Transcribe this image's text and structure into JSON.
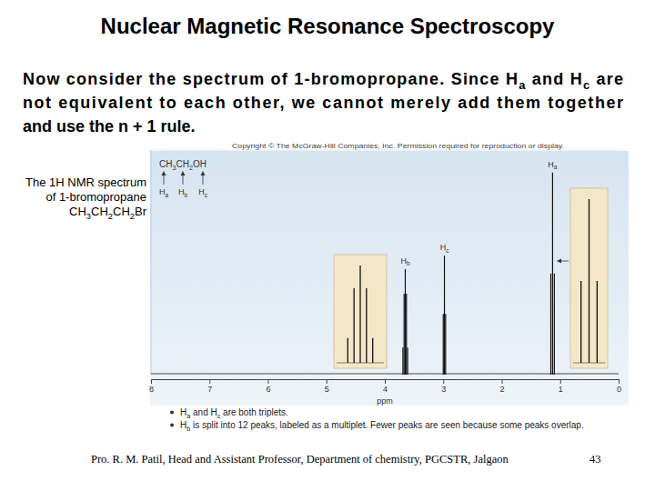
{
  "slide": {
    "title": "Nuclear Magnetic Resonance Spectroscopy",
    "paragraph": [
      [
        "Now consider the spectrum of 1-bromopropane. Since H",
        "a",
        " and H",
        "c",
        " are"
      ],
      [
        "not equivalent to each other, we cannot merely add them together"
      ],
      [
        "and use the n + 1 rule."
      ]
    ],
    "caption": [
      [
        "The 1H NMR spectrum"
      ],
      [
        "of 1-bromopropane"
      ],
      [
        "CH",
        "3",
        "CH",
        "2",
        "CH",
        "2",
        "Br"
      ]
    ],
    "copyright": "Copyright © The McGraw-Hill Companies, Inc. Permission required for reproduction or display.",
    "structure": [
      "CH",
      "3",
      "CH",
      "2",
      "OH"
    ],
    "structure_labels": [
      [
        "H",
        "a"
      ],
      [
        "H",
        "b"
      ],
      [
        "H",
        "c"
      ]
    ],
    "bullets": [
      [
        "H",
        "a",
        " and H",
        "c",
        " are both triplets."
      ],
      [
        "H",
        "b",
        " is split into 12 peaks, labeled as a multiplet. Fewer peaks are seen because some peaks overlap."
      ]
    ],
    "footer": "Pro. R. M. Patil, Head and Assistant Professor, Department of chemistry, PGCSTR, Jalgaon",
    "page": "43"
  },
  "chart_data": {
    "type": "stem",
    "xlabel": "ppm",
    "xlim": [
      8,
      0
    ],
    "xticks": [
      8,
      7,
      6,
      5,
      4,
      3,
      2,
      1,
      0
    ],
    "ylim": [
      0,
      100
    ],
    "tick_labels": "x",
    "series": [
      {
        "name": "Ha",
        "color": "#111111",
        "x": [
          1.1,
          1.13,
          1.16
        ],
        "values": [
          45,
          90,
          45
        ]
      },
      {
        "name": "Hb",
        "color": "#111111",
        "x": [
          3.61,
          3.63,
          3.65,
          3.67,
          3.69
        ],
        "values": [
          12,
          36,
          47,
          36,
          12
        ]
      },
      {
        "name": "Hc",
        "color": "#111111",
        "x": [
          2.96,
          2.98,
          3.0
        ],
        "values": [
          27,
          53,
          27
        ]
      }
    ]
  }
}
